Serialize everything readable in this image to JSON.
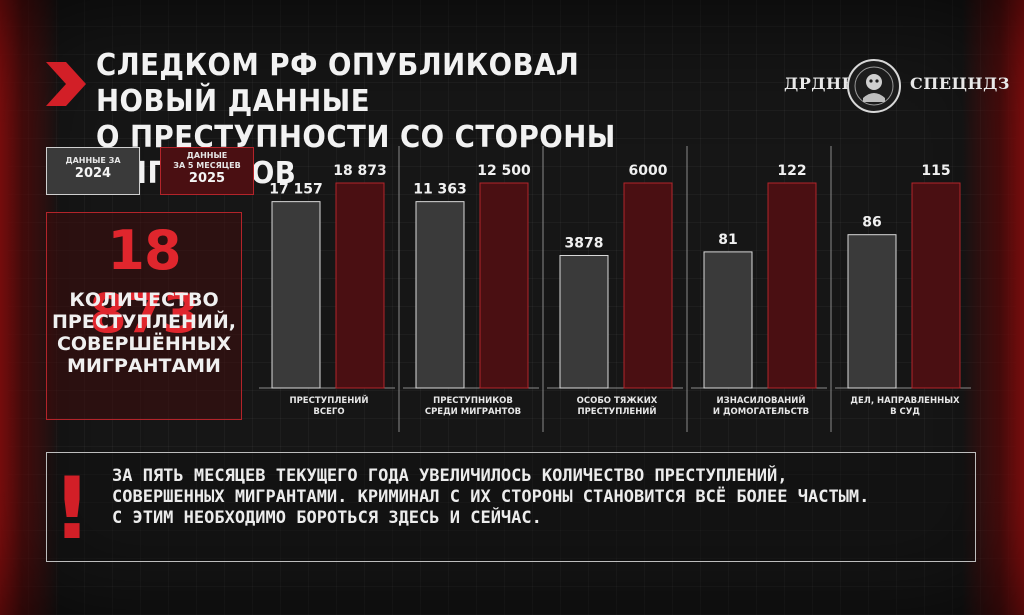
{
  "header": {
    "title_line1": "СЛЕДКОМ РФ ОПУБЛИКОВАЛ НОВЫЙ ДАННЫЕ",
    "title_line2": "О ПРЕСТУПНОСТИ СО СТОРОНЫ МИГРАНТОВ"
  },
  "logo": {
    "left_word": "ДРДНЫЧ",
    "right_word": "СПЕЦНДЗ"
  },
  "legend": {
    "y2024_top": "ДАННЫЕ ЗА",
    "y2024_year": "2024",
    "y2025_top1": "ДАННЫЕ",
    "y2025_top2": "ЗА 5 МЕСЯЦЕВ",
    "y2025_year": "2025"
  },
  "highlight": {
    "number": "18 873",
    "label_lines": [
      "КОЛИЧЕСТВО",
      "ПРЕСТУПЛЕНИЙ,",
      "СОВЕРШЁННЫХ",
      "МИГРАНТАМИ"
    ]
  },
  "colors": {
    "accent_red": "#d21f27",
    "bar_2025": "#4a0f12",
    "bar_2025_border": "#b3242a",
    "bar_2024": "#3a3a3a",
    "bar_2024_border": "#d9d9d9"
  },
  "chart_data": {
    "type": "bar",
    "categories": [
      [
        "ПРЕСТУПЛЕНИЙ",
        "ВСЕГО"
      ],
      [
        "ПРЕСТУПНИКОВ",
        "СРЕДИ МИГРАНТОВ"
      ],
      [
        "ОСОБО ТЯЖКИХ",
        "ПРЕСТУПЛЕНИЙ"
      ],
      [
        "ИЗНАСИЛОВАНИЙ",
        "И ДОМОГАТЕЛЬСТВ"
      ],
      [
        "ДЕЛ, НАПРАВЛЕННЫХ",
        "В СУД"
      ]
    ],
    "series": [
      {
        "year": "2024",
        "values": [
          17157,
          11363,
          3878,
          81,
          86
        ],
        "labels": [
          "17 157",
          "11 363",
          "3878",
          "81",
          "86"
        ]
      },
      {
        "year": "2025",
        "values": [
          18873,
          12500,
          6000,
          122,
          115
        ],
        "labels": [
          "18 873",
          "12 500",
          "6000",
          "122",
          "115"
        ]
      }
    ]
  },
  "note": {
    "lines": [
      "ЗА ПЯТЬ МЕСЯЦЕВ ТЕКУЩЕГО ГОДА УВЕЛИЧИЛОСЬ КОЛИЧЕСТВО ПРЕСТУПЛЕНИЙ,",
      "СОВЕРШЕННЫХ МИГРАНТАМИ. КРИМИНАЛ С ИХ СТОРОНЫ СТАНОВИТСЯ ВСЁ БОЛЕЕ ЧАСТЫМ.",
      "С ЭТИМ НЕОБХОДИМО БОРОТЬСЯ ЗДЕСЬ И СЕЙЧАС."
    ],
    "icon": "!"
  }
}
